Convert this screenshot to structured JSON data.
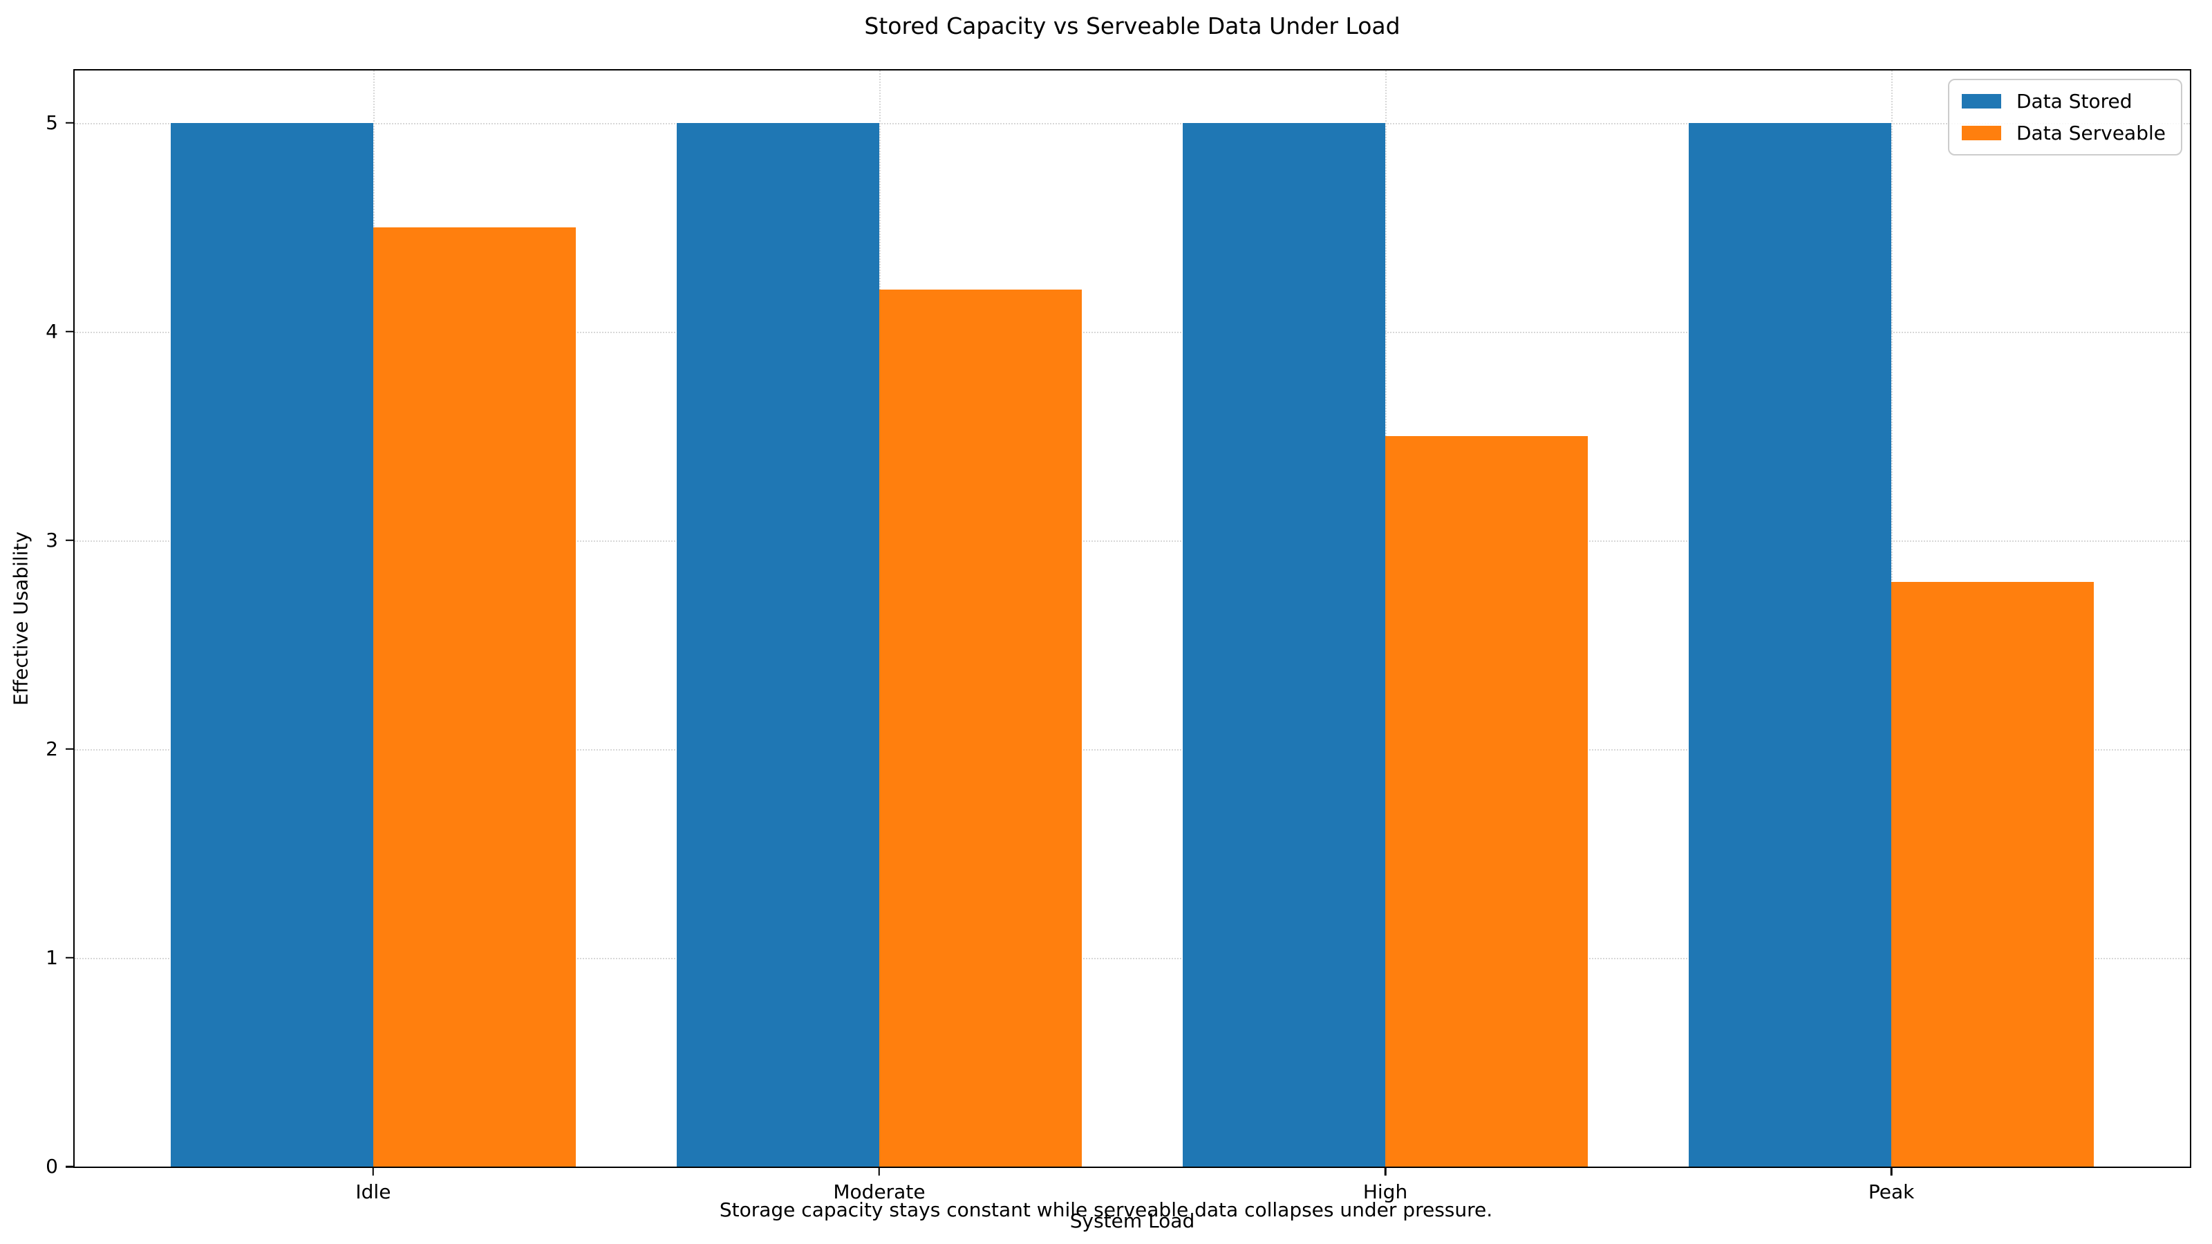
{
  "chart_data": {
    "type": "bar",
    "title": "Stored Capacity vs Serveable Data Under Load",
    "xlabel": "System Load",
    "ylabel": "Effective Usability",
    "caption": "Storage capacity stays constant while serveable data collapses under pressure.",
    "categories": [
      "Idle",
      "Moderate",
      "High",
      "Peak"
    ],
    "series": [
      {
        "name": "Data Stored",
        "color": "#1f77b4",
        "values": [
          5.0,
          5.0,
          5.0,
          5.0
        ]
      },
      {
        "name": "Data Serveable",
        "color": "#ff7f0e",
        "values": [
          4.5,
          4.2,
          3.5,
          2.8
        ]
      }
    ],
    "yticks": [
      0,
      1,
      2,
      3,
      4,
      5
    ],
    "ylim": [
      0,
      5.25
    ],
    "xlim": [
      -0.59,
      3.59
    ],
    "bar_width": 0.4,
    "grid": "dotted, horizontal at y ticks and vertical at category centers",
    "legend_position": "upper right",
    "colors": {
      "spine": "#000000",
      "gridline": "#d7d7d7",
      "background": "#ffffff"
    }
  }
}
